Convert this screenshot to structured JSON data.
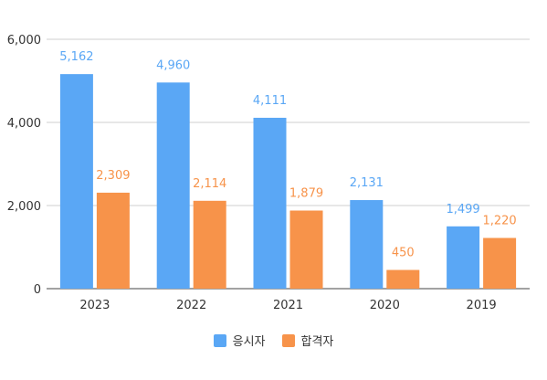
{
  "chart_data": {
    "type": "bar",
    "title": "",
    "xlabel": "",
    "ylabel": "",
    "ylim": [
      0,
      6000
    ],
    "yticks": [
      "0",
      "2,000",
      "4,000",
      "6,000"
    ],
    "ytick_values": [
      0,
      2000,
      4000,
      6000
    ],
    "grid": true,
    "legend_position": "bottom",
    "categories": [
      "2023",
      "2022",
      "2021",
      "2020",
      "2019"
    ],
    "series": [
      {
        "name": "응시자",
        "color": "#5aa7f5",
        "values": [
          5162,
          4960,
          4111,
          2131,
          1499
        ],
        "labels": [
          "5,162",
          "4,960",
          "4,111",
          "2,131",
          "1,499"
        ]
      },
      {
        "name": "합격자",
        "color": "#f7934a",
        "values": [
          2309,
          2114,
          1879,
          450,
          1220
        ],
        "labels": [
          "2,309",
          "2,114",
          "1,879",
          "450",
          "1,220"
        ]
      }
    ]
  }
}
